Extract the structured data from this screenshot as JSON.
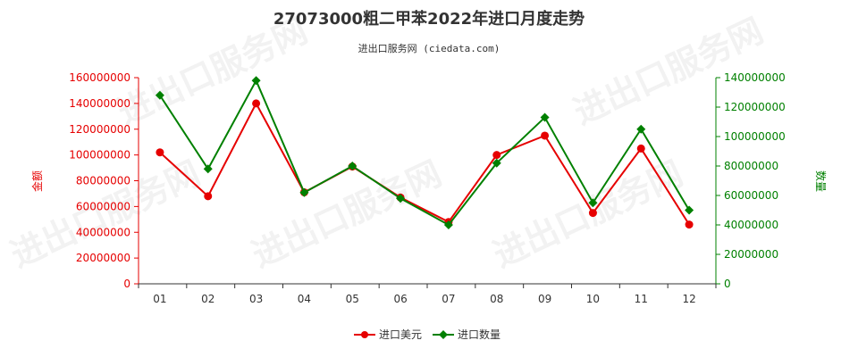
{
  "chart_data": {
    "type": "line",
    "title": "27073000粗二甲苯2022年进口月度走势",
    "subtitle": "进出口服务网 (ciedata.com)",
    "categories": [
      "01",
      "02",
      "03",
      "04",
      "05",
      "06",
      "07",
      "08",
      "09",
      "10",
      "11",
      "12"
    ],
    "y_left": {
      "label": "金额",
      "range": [
        0,
        160000000
      ],
      "ticks": [
        "0",
        "20000000",
        "40000000",
        "60000000",
        "80000000",
        "100000000",
        "120000000",
        "140000000",
        "160000000"
      ]
    },
    "y_right": {
      "label": "数量",
      "range": [
        0,
        140000000
      ],
      "ticks": [
        "0",
        "20000000",
        "40000000",
        "60000000",
        "80000000",
        "100000000",
        "120000000",
        "140000000"
      ]
    },
    "series": [
      {
        "name": "进口美元",
        "axis": "left",
        "color": "#e60000",
        "marker": "circle",
        "values": [
          102000000,
          68000000,
          140000000,
          71000000,
          91000000,
          67000000,
          48000000,
          100000000,
          115000000,
          55000000,
          105000000,
          46000000
        ]
      },
      {
        "name": "进口数量",
        "axis": "right",
        "color": "#008000",
        "marker": "diamond",
        "values": [
          128000000,
          78000000,
          138000000,
          62000000,
          80000000,
          58000000,
          40000000,
          82000000,
          113000000,
          55000000,
          105000000,
          50000000
        ]
      }
    ],
    "legend": "bottom-center",
    "watermark": "进出口服务网"
  }
}
